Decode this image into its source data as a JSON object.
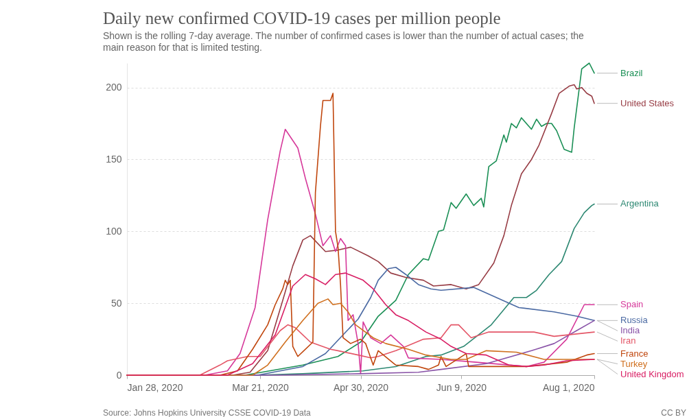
{
  "chart_data": {
    "type": "line",
    "title": "Daily new confirmed COVID-19 cases per million people",
    "subtitle": "Shown is the rolling 7-day average. The number of confirmed cases is lower than the number of actual cases; the main reason for that is limited testing.",
    "xlim": [
      "2020-01-28",
      "2020-08-01"
    ],
    "xticks": [
      {
        "value": "2020-01-28",
        "label": "Jan 28, 2020"
      },
      {
        "value": "2020-03-21",
        "label": "Mar 21, 2020"
      },
      {
        "value": "2020-04-30",
        "label": "Apr 30, 2020"
      },
      {
        "value": "2020-06-09",
        "label": "Jun 9, 2020"
      },
      {
        "value": "2020-08-01",
        "label": "Aug 1, 2020"
      }
    ],
    "ylim": [
      0,
      217
    ],
    "yticks": [
      0,
      50,
      100,
      150,
      200
    ],
    "grid": "y",
    "legend": "right",
    "annotations": [
      "Source: Johns Hopkins University CSSE COVID-19 Data",
      "CC BY"
    ],
    "series": [
      {
        "name": "Brazil",
        "color": "#1a8f55",
        "x": [
          "2020-01-28",
          "2020-03-15",
          "2020-04-07",
          "2020-04-21",
          "2020-04-30",
          "2020-05-07",
          "2020-05-14",
          "2020-05-19",
          "2020-05-25",
          "2020-05-27",
          "2020-05-31",
          "2020-06-02",
          "2020-06-05",
          "2020-06-07",
          "2020-06-11",
          "2020-06-14",
          "2020-06-17",
          "2020-06-18",
          "2020-06-20",
          "2020-06-23",
          "2020-06-26",
          "2020-06-27",
          "2020-06-29",
          "2020-07-01",
          "2020-07-03",
          "2020-07-07",
          "2020-07-09",
          "2020-07-11",
          "2020-07-13",
          "2020-07-15",
          "2020-07-17",
          "2020-07-20",
          "2020-07-23",
          "2020-07-24",
          "2020-07-27",
          "2020-07-30",
          "2020-08-01"
        ],
        "values": [
          0,
          0,
          7,
          13,
          23,
          41,
          52,
          70,
          81,
          80,
          100,
          101,
          120,
          116,
          126,
          118,
          123,
          117,
          145,
          149,
          167,
          162,
          175,
          172,
          179,
          171,
          178,
          173,
          175,
          175,
          170,
          157,
          155,
          172,
          213,
          217,
          210
        ]
      },
      {
        "name": "United States",
        "color": "#973c44",
        "x": [
          "2020-01-28",
          "2020-03-10",
          "2020-03-17",
          "2020-03-24",
          "2020-03-30",
          "2020-04-03",
          "2020-04-07",
          "2020-04-10",
          "2020-04-16",
          "2020-04-21",
          "2020-04-26",
          "2020-05-03",
          "2020-05-07",
          "2020-05-12",
          "2020-05-18",
          "2020-05-25",
          "2020-05-29",
          "2020-06-05",
          "2020-06-11",
          "2020-06-16",
          "2020-06-22",
          "2020-06-26",
          "2020-06-29",
          "2020-07-03",
          "2020-07-07",
          "2020-07-10",
          "2020-07-15",
          "2020-07-18",
          "2020-07-22",
          "2020-07-24",
          "2020-07-25",
          "2020-07-27",
          "2020-07-29",
          "2020-07-31",
          "2020-08-01"
        ],
        "values": [
          0,
          0,
          2,
          17,
          52,
          76,
          94,
          97,
          86,
          87,
          89,
          83,
          79,
          71,
          68,
          66,
          62,
          63,
          60,
          63,
          78,
          97,
          118,
          140,
          150,
          160,
          182,
          196,
          201,
          202,
          199,
          200,
          196,
          194,
          189
        ]
      },
      {
        "name": "Argentina",
        "color": "#2d8872",
        "x": [
          "2020-01-28",
          "2020-03-20",
          "2020-04-07",
          "2020-05-01",
          "2020-05-14",
          "2020-05-26",
          "2020-06-01",
          "2020-06-10",
          "2020-06-21",
          "2020-06-30",
          "2020-07-05",
          "2020-07-09",
          "2020-07-14",
          "2020-07-19",
          "2020-07-24",
          "2020-07-28",
          "2020-07-31",
          "2020-08-01"
        ],
        "values": [
          0,
          0,
          1,
          3,
          6,
          13,
          14,
          20,
          35,
          54,
          54,
          59,
          70,
          79,
          102,
          113,
          118,
          119
        ]
      },
      {
        "name": "Spain",
        "color": "#d6389a",
        "x": [
          "2020-01-28",
          "2020-02-28",
          "2020-03-08",
          "2020-03-13",
          "2020-03-19",
          "2020-03-24",
          "2020-03-27",
          "2020-03-29",
          "2020-03-31",
          "2020-04-05",
          "2020-04-08",
          "2020-04-12",
          "2020-04-15",
          "2020-04-18",
          "2020-04-20",
          "2020-04-22",
          "2020-04-24",
          "2020-04-25",
          "2020-04-27",
          "2020-04-29",
          "2020-04-30",
          "2020-05-01",
          "2020-05-04",
          "2020-05-08",
          "2020-05-12",
          "2020-05-17",
          "2020-05-19",
          "2020-06-01",
          "2020-06-15",
          "2020-07-05",
          "2020-07-12",
          "2020-07-21",
          "2020-07-28",
          "2020-08-01"
        ],
        "values": [
          0,
          0,
          3,
          15,
          47,
          108,
          137,
          156,
          171,
          158,
          137,
          112,
          90,
          97,
          86,
          95,
          90,
          38,
          42,
          22,
          1,
          37,
          26,
          22,
          28,
          20,
          12,
          11,
          9,
          6,
          9,
          25,
          49,
          49
        ]
      },
      {
        "name": "Russia",
        "color": "#4b6aa3",
        "x": [
          "2020-01-28",
          "2020-03-20",
          "2020-04-07",
          "2020-04-16",
          "2020-04-23",
          "2020-04-29",
          "2020-05-04",
          "2020-05-07",
          "2020-05-11",
          "2020-05-14",
          "2020-05-18",
          "2020-05-23",
          "2020-05-28",
          "2020-06-01",
          "2020-06-14",
          "2020-06-23",
          "2020-07-02",
          "2020-07-16",
          "2020-07-25",
          "2020-08-01"
        ],
        "values": [
          0,
          0,
          6,
          15,
          28,
          39,
          54,
          66,
          74,
          75,
          70,
          63,
          60,
          59,
          61,
          54,
          47,
          44,
          41,
          38
        ]
      },
      {
        "name": "India",
        "color": "#8a54a8",
        "x": [
          "2020-01-28",
          "2020-03-28",
          "2020-04-30",
          "2020-05-23",
          "2020-06-01",
          "2020-06-19",
          "2020-07-07",
          "2020-07-16",
          "2020-07-25",
          "2020-08-01"
        ],
        "values": [
          0,
          0,
          1,
          2,
          4,
          8,
          17,
          22,
          31,
          38
        ]
      },
      {
        "name": "Iran",
        "color": "#e45667",
        "x": [
          "2020-01-28",
          "2020-02-26",
          "2020-03-05",
          "2020-03-08",
          "2020-03-16",
          "2020-03-21",
          "2020-03-29",
          "2020-04-01",
          "2020-04-04",
          "2020-04-10",
          "2020-04-18",
          "2020-04-21",
          "2020-04-29",
          "2020-05-04",
          "2020-05-07",
          "2020-05-14",
          "2020-05-25",
          "2020-06-01",
          "2020-06-05",
          "2020-06-08",
          "2020-06-13",
          "2020-06-20",
          "2020-07-08",
          "2020-07-16",
          "2020-08-01"
        ],
        "values": [
          0,
          0,
          7,
          10,
          13,
          13,
          31,
          35,
          33,
          23,
          18,
          17,
          14,
          12,
          13,
          17,
          25,
          26,
          35,
          35,
          26,
          30,
          30,
          27,
          30
        ]
      },
      {
        "name": "France",
        "color": "#c0460d",
        "x": [
          "2020-01-28",
          "2020-03-05",
          "2020-03-12",
          "2020-03-18",
          "2020-03-24",
          "2020-03-27",
          "2020-03-30",
          "2020-03-31",
          "2020-04-01",
          "2020-04-02",
          "2020-04-03",
          "2020-04-05",
          "2020-04-11",
          "2020-04-12",
          "2020-04-14",
          "2020-04-15",
          "2020-04-18",
          "2020-04-19",
          "2020-04-20",
          "2020-04-21",
          "2020-04-22",
          "2020-04-23",
          "2020-04-26",
          "2020-04-30",
          "2020-05-02",
          "2020-05-05",
          "2020-05-07",
          "2020-05-14",
          "2020-05-23",
          "2020-05-27",
          "2020-05-31",
          "2020-06-01",
          "2020-06-03",
          "2020-06-11",
          "2020-06-12",
          "2020-07-05",
          "2020-07-21",
          "2020-07-29",
          "2020-08-01"
        ],
        "values": [
          0,
          0,
          3,
          18,
          35,
          49,
          60,
          66,
          63,
          66,
          20,
          13,
          23,
          127,
          173,
          191,
          191,
          196,
          100,
          89,
          63,
          26,
          22,
          25,
          22,
          7,
          17,
          7,
          6,
          4,
          7,
          13,
          6,
          15,
          6,
          6,
          9,
          14,
          15
        ]
      },
      {
        "name": "Turkey",
        "color": "#d0701f",
        "x": [
          "2020-01-28",
          "2020-03-18",
          "2020-03-24",
          "2020-03-31",
          "2020-04-07",
          "2020-04-13",
          "2020-04-17",
          "2020-04-19",
          "2020-04-22",
          "2020-04-25",
          "2020-04-28",
          "2020-05-05",
          "2020-05-10",
          "2020-05-19",
          "2020-05-26",
          "2020-06-05",
          "2020-06-11",
          "2020-06-19",
          "2020-07-01",
          "2020-07-12",
          "2020-07-21",
          "2020-08-01"
        ],
        "values": [
          0,
          0,
          7,
          23,
          38,
          50,
          53,
          49,
          50,
          44,
          35,
          26,
          22,
          18,
          14,
          11,
          11,
          17,
          16,
          11,
          11,
          11
        ]
      },
      {
        "name": "United Kingdom",
        "color": "#d81d63",
        "x": [
          "2020-01-28",
          "2020-03-08",
          "2020-03-18",
          "2020-03-27",
          "2020-04-03",
          "2020-04-08",
          "2020-04-12",
          "2020-04-16",
          "2020-04-20",
          "2020-04-24",
          "2020-05-01",
          "2020-05-05",
          "2020-05-10",
          "2020-05-14",
          "2020-05-19",
          "2020-05-26",
          "2020-06-01",
          "2020-06-05",
          "2020-06-11",
          "2020-06-19",
          "2020-06-28",
          "2020-07-05",
          "2020-07-12",
          "2020-07-21",
          "2020-08-01"
        ],
        "values": [
          0,
          0,
          8,
          28,
          62,
          70,
          67,
          63,
          70,
          71,
          66,
          60,
          49,
          42,
          38,
          30,
          25,
          20,
          15,
          14,
          7,
          6,
          7,
          10,
          11
        ]
      }
    ]
  }
}
